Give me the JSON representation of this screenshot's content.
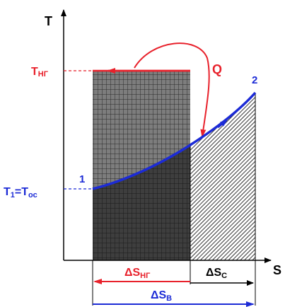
{
  "axes": {
    "y_label": "T",
    "x_label": "S"
  },
  "levels": {
    "t_ng": {
      "main": "T",
      "sub": "НГ"
    },
    "t1": {
      "main": "T",
      "sub1": "1",
      "eq": "=T",
      "sub2": "ос"
    }
  },
  "points": {
    "p1": "1",
    "p2": "2"
  },
  "heat": {
    "label": "Q"
  },
  "entropy": {
    "ds_ng": {
      "main": "ΔS",
      "sub": "НГ"
    },
    "ds_c": {
      "main": "ΔS",
      "sub": "С"
    },
    "ds_b": {
      "main": "ΔS",
      "sub": "В"
    }
  },
  "colors": {
    "red": "#e8212b",
    "blue": "#1c2bd6",
    "grid_fill": "#4a4a4a",
    "hatch": "#000000"
  }
}
